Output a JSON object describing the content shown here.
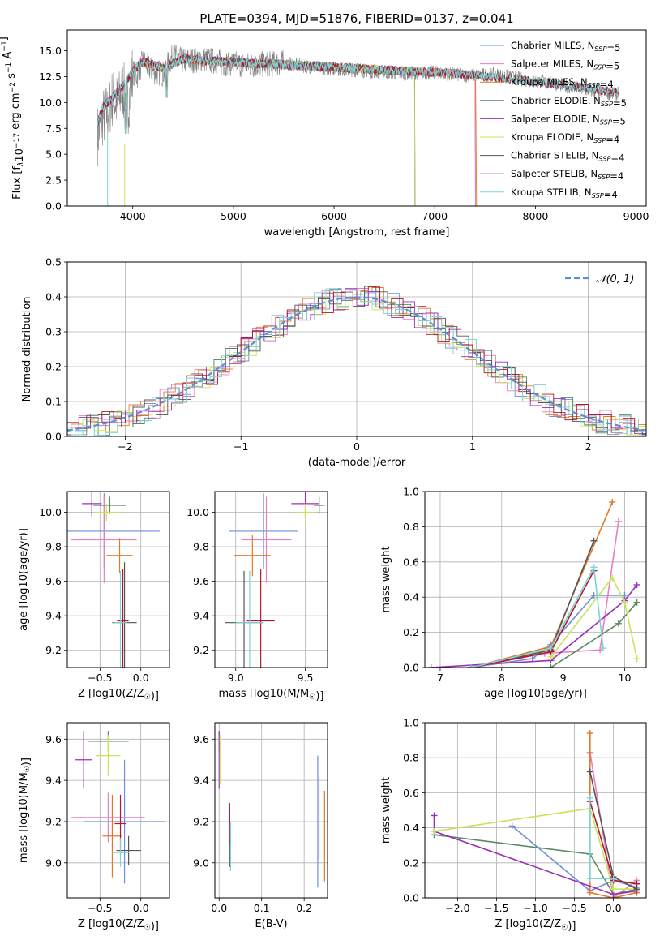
{
  "colors": {
    "chabrier_miles": "#6d8fdc",
    "salpeter_miles": "#e87fc0",
    "kroupa_miles": "#e07a28",
    "chabrier_elodie": "#5a8a64",
    "salpeter_elodie": "#9a2fb8",
    "kroupa_elodie": "#c8e35a",
    "chabrier_stelib": "#555555",
    "salpeter_stelib": "#b11a2a",
    "kroupa_stelib": "#7ed3d8",
    "normal": "#5b8fd8",
    "spectrum_data": "#808080"
  },
  "chart_data": [
    {
      "id": "spectrum",
      "type": "line",
      "title": "PLATE=0394, MJD=51876, FIBERID=0137, z=0.041",
      "xlabel": "wavelength [Angstrom, rest frame]",
      "ylabel": "Flux [f_λ10^-17 erg cm^-2 s^-1 A^-1]",
      "xlim": [
        3350,
        9100
      ],
      "ylim": [
        0,
        17
      ],
      "xticks": [
        4000,
        5000,
        6000,
        7000,
        8000,
        9000
      ],
      "yticks": [
        0.0,
        2.5,
        5.0,
        7.5,
        10.0,
        12.5,
        15.0
      ],
      "legend_position": "top-right",
      "legend": [
        {
          "label": "Chabrier MILES, N_SSP=5",
          "color": "chabrier_miles"
        },
        {
          "label": "Salpeter MILES, N_SSP=5",
          "color": "salpeter_miles"
        },
        {
          "label": "Kroupa MILES, N_SSP=4",
          "color": "kroupa_miles"
        },
        {
          "label": "Chabrier ELODIE, N_SSP=5",
          "color": "chabrier_elodie"
        },
        {
          "label": "Salpeter ELODIE, N_SSP=5",
          "color": "salpeter_elodie"
        },
        {
          "label": "Kroupa ELODIE, N_SSP=4",
          "color": "kroupa_elodie"
        },
        {
          "label": "Chabrier STELIB, N_SSP=4",
          "color": "chabrier_stelib"
        },
        {
          "label": "Salpeter STELIB, N_SSP=4",
          "color": "salpeter_stelib"
        },
        {
          "label": "Kroupa STELIB, N_SSP=4",
          "color": "kroupa_stelib"
        }
      ],
      "data_curve": {
        "color": "spectrum_data",
        "x": [
          3650,
          3700,
          3750,
          3800,
          3850,
          3900,
          3950,
          4000,
          4050,
          4100,
          4200,
          4300,
          4400,
          4500,
          4700,
          4900,
          5200,
          5500,
          5800,
          6100,
          6400,
          6700,
          7000,
          7300,
          7600,
          7900,
          8200,
          8500,
          8800
        ],
        "y": [
          6.8,
          8.5,
          9.0,
          10.5,
          9.8,
          11.5,
          9.5,
          13.0,
          12.5,
          14.0,
          13.0,
          12.8,
          14.5,
          14.0,
          14.2,
          13.8,
          13.6,
          13.8,
          13.4,
          13.2,
          13.0,
          12.8,
          12.9,
          12.6,
          12.7,
          12.2,
          11.8,
          11.2,
          10.8
        ]
      },
      "model_curve": {
        "x": [
          3650,
          3700,
          3800,
          3900,
          4000,
          4100,
          4300,
          4500,
          4800,
          5200,
          5600,
          6000,
          6400,
          6800,
          7200,
          7600,
          8000,
          8400,
          8800
        ],
        "y": [
          8.0,
          9.5,
          10.5,
          11.5,
          13.0,
          14.0,
          13.3,
          14.2,
          14.0,
          13.8,
          13.6,
          13.4,
          13.2,
          13.0,
          12.8,
          12.4,
          12.0,
          11.5,
          11.0
        ]
      }
    },
    {
      "id": "residuals",
      "type": "histogram",
      "xlabel": "(data-model)/error",
      "ylabel": "Normed distribution",
      "xlim": [
        -2.5,
        2.5
      ],
      "ylim": [
        0,
        0.5
      ],
      "xticks": [
        -2,
        -1,
        0,
        1,
        2
      ],
      "yticks": [
        0.0,
        0.1,
        0.2,
        0.3,
        0.4,
        0.5
      ],
      "grid": true,
      "legend_position": "top-right",
      "legend": [
        {
          "label": "𝒩(0, 1)",
          "color": "normal",
          "style": "dashed"
        }
      ]
    },
    {
      "id": "age_vs_Z",
      "type": "scatter",
      "xlabel": "Z [log10(Z/Z☉)]",
      "ylabel": "age  [log10(age/yr)]",
      "xlim": [
        -0.9,
        0.35
      ],
      "ylim": [
        9.1,
        10.12
      ],
      "xticks": [
        -0.5,
        0.0
      ],
      "yticks": [
        9.2,
        9.4,
        9.6,
        9.8,
        10.0
      ],
      "grid": true,
      "points": [
        {
          "model": "chabrier_miles",
          "x": -0.45,
          "y": 9.89,
          "xerr": 0.68,
          "yerr": 0.22
        },
        {
          "model": "salpeter_miles",
          "x": -0.45,
          "y": 9.84,
          "xerr": 0.4,
          "yerr": 0.25
        },
        {
          "model": "kroupa_miles",
          "x": -0.26,
          "y": 9.75,
          "xerr": 0.16,
          "yerr": 0.1
        },
        {
          "model": "chabrier_elodie",
          "x": -0.38,
          "y": 10.04,
          "xerr": 0.2,
          "yerr": 0.05
        },
        {
          "model": "salpeter_elodie",
          "x": -0.6,
          "y": 10.05,
          "xerr": 0.12,
          "yerr": 0.08
        },
        {
          "model": "kroupa_elodie",
          "x": -0.42,
          "y": 10.0,
          "xerr": 0.16,
          "yerr": 0.05
        },
        {
          "model": "chabrier_stelib",
          "x": -0.2,
          "y": 9.36,
          "xerr": 0.15,
          "yerr": 0.35
        },
        {
          "model": "salpeter_stelib",
          "x": -0.22,
          "y": 9.37,
          "xerr": 0.07,
          "yerr": 0.3
        },
        {
          "model": "kroupa_stelib",
          "x": -0.25,
          "y": 9.36,
          "xerr": 0.08,
          "yerr": 0.3
        }
      ]
    },
    {
      "id": "age_vs_mass",
      "type": "scatter",
      "xlabel": "mass [log10(M/M☉)]",
      "ylabel": "",
      "xlim": [
        8.85,
        9.66
      ],
      "ylim": [
        9.1,
        10.12
      ],
      "xticks": [
        9.0,
        9.5
      ],
      "yticks": [
        9.2,
        9.4,
        9.6,
        9.8,
        10.0
      ],
      "grid": true,
      "points": [
        {
          "model": "chabrier_miles",
          "x": 9.2,
          "y": 9.89,
          "xerr": 0.25,
          "yerr": 0.22
        },
        {
          "model": "salpeter_miles",
          "x": 9.22,
          "y": 9.84,
          "xerr": 0.18,
          "yerr": 0.25
        },
        {
          "model": "kroupa_miles",
          "x": 9.12,
          "y": 9.75,
          "xerr": 0.13,
          "yerr": 0.12
        },
        {
          "model": "chabrier_elodie",
          "x": 9.6,
          "y": 10.04,
          "xerr": 0.04,
          "yerr": 0.05
        },
        {
          "model": "salpeter_elodie",
          "x": 9.5,
          "y": 10.05,
          "xerr": 0.1,
          "yerr": 0.08
        },
        {
          "model": "kroupa_elodie",
          "x": 9.5,
          "y": 10.0,
          "xerr": 0.06,
          "yerr": 0.05
        },
        {
          "model": "chabrier_stelib",
          "x": 9.06,
          "y": 9.36,
          "xerr": 0.14,
          "yerr": 0.3
        },
        {
          "model": "salpeter_stelib",
          "x": 9.18,
          "y": 9.37,
          "xerr": 0.1,
          "yerr": 0.3
        },
        {
          "model": "kroupa_stelib",
          "x": 9.1,
          "y": 9.36,
          "xerr": 0.1,
          "yerr": 0.3
        }
      ]
    },
    {
      "id": "mass_weight_vs_age",
      "type": "line",
      "xlabel": "age  [log10(age/yr)]",
      "ylabel": "mass weight",
      "xlim": [
        6.75,
        10.35
      ],
      "ylim": [
        0,
        1.0
      ],
      "xticks": [
        7,
        8,
        9,
        10
      ],
      "yticks": [
        0.0,
        0.2,
        0.4,
        0.6,
        0.8,
        1.0
      ],
      "grid": true,
      "series": [
        {
          "model": "chabrier_miles",
          "x": [
            7.5,
            8.5,
            8.8,
            9.5,
            10.0
          ],
          "y": [
            0.0,
            0.05,
            0.13,
            0.41,
            0.41
          ]
        },
        {
          "model": "salpeter_miles",
          "x": [
            7.5,
            8.7,
            9.6,
            9.9
          ],
          "y": [
            0.0,
            0.08,
            0.1,
            0.83
          ]
        },
        {
          "model": "kroupa_miles",
          "x": [
            7.5,
            8.8,
            9.8
          ],
          "y": [
            0.0,
            0.12,
            0.94
          ]
        },
        {
          "model": "chabrier_elodie",
          "x": [
            7.5,
            8.8,
            9.9,
            10.2
          ],
          "y": [
            0.0,
            0.0,
            0.25,
            0.37
          ]
        },
        {
          "model": "salpeter_elodie",
          "x": [
            6.85,
            8.8,
            10.0,
            10.2
          ],
          "y": [
            0.0,
            0.04,
            0.38,
            0.47
          ]
        },
        {
          "model": "kroupa_elodie",
          "x": [
            8.8,
            9.8,
            10.0,
            10.2
          ],
          "y": [
            0.06,
            0.51,
            0.37,
            0.05
          ]
        },
        {
          "model": "chabrier_stelib",
          "x": [
            7.5,
            8.8,
            9.5
          ],
          "y": [
            0.0,
            0.1,
            0.72
          ]
        },
        {
          "model": "salpeter_stelib",
          "x": [
            7.5,
            8.8,
            9.5
          ],
          "y": [
            0.0,
            0.09,
            0.55
          ]
        },
        {
          "model": "kroupa_stelib",
          "x": [
            7.5,
            8.8,
            9.5,
            9.65
          ],
          "y": [
            0.0,
            0.11,
            0.57,
            0.11
          ]
        }
      ]
    },
    {
      "id": "mass_vs_Z",
      "type": "scatter",
      "xlabel": "Z [log10(Z/Z☉)]",
      "ylabel": "mass [log10(M/M☉)]",
      "xlim": [
        -0.9,
        0.35
      ],
      "ylim": [
        8.83,
        9.68
      ],
      "xticks": [
        -0.5,
        0.0
      ],
      "yticks": [
        9.0,
        9.2,
        9.4,
        9.6
      ],
      "grid": true,
      "points": [
        {
          "model": "chabrier_miles",
          "x": -0.2,
          "y": 9.2,
          "xerr": 0.5,
          "yerr": 0.3
        },
        {
          "model": "salpeter_miles",
          "x": -0.4,
          "y": 9.22,
          "xerr": 0.45,
          "yerr": 0.12
        },
        {
          "model": "kroupa_miles",
          "x": -0.35,
          "y": 9.13,
          "xerr": 0.12,
          "yerr": 0.2
        },
        {
          "model": "chabrier_elodie",
          "x": -0.4,
          "y": 9.59,
          "xerr": 0.25,
          "yerr": 0.05
        },
        {
          "model": "salpeter_elodie",
          "x": -0.7,
          "y": 9.5,
          "xerr": 0.1,
          "yerr": 0.14
        },
        {
          "model": "kroupa_elodie",
          "x": -0.4,
          "y": 9.52,
          "xerr": 0.15,
          "yerr": 0.1
        },
        {
          "model": "chabrier_stelib",
          "x": -0.15,
          "y": 9.06,
          "xerr": 0.15,
          "yerr": 0.07
        },
        {
          "model": "salpeter_stelib",
          "x": -0.25,
          "y": 9.19,
          "xerr": 0.07,
          "yerr": 0.14
        },
        {
          "model": "kroupa_stelib",
          "x": -0.25,
          "y": 9.05,
          "xerr": 0.1,
          "yerr": 0.07
        }
      ]
    },
    {
      "id": "mass_vs_ebv",
      "type": "scatter",
      "xlabel": "E(B-V)",
      "ylabel": "",
      "xlim": [
        -0.01,
        0.255
      ],
      "ylim": [
        8.83,
        9.68
      ],
      "xticks": [
        0.0,
        0.1,
        0.2
      ],
      "yticks": [
        9.0,
        9.2,
        9.4,
        9.6
      ],
      "grid": true,
      "points": [
        {
          "model": "chabrier_miles",
          "x": 0.232,
          "y": 9.2,
          "xerr": 0.0,
          "yerr": 0.32
        },
        {
          "model": "salpeter_miles",
          "x": 0.235,
          "y": 9.22,
          "xerr": 0.0,
          "yerr": 0.2
        },
        {
          "model": "kroupa_miles",
          "x": 0.248,
          "y": 9.13,
          "xerr": 0.0,
          "yerr": 0.22
        },
        {
          "model": "chabrier_elodie",
          "x": 0.0,
          "y": 9.59,
          "xerr": 0.0,
          "yerr": 0.05
        },
        {
          "model": "salpeter_elodie",
          "x": 0.0,
          "y": 9.5,
          "xerr": 0.0,
          "yerr": 0.14
        },
        {
          "model": "kroupa_elodie",
          "x": 0.002,
          "y": 9.5,
          "xerr": 0.0,
          "yerr": 0.12
        },
        {
          "model": "chabrier_stelib",
          "x": 0.025,
          "y": 9.06,
          "xerr": 0.0,
          "yerr": 0.08
        },
        {
          "model": "salpeter_stelib",
          "x": 0.025,
          "y": 9.19,
          "xerr": 0.0,
          "yerr": 0.1
        },
        {
          "model": "kroupa_stelib",
          "x": 0.027,
          "y": 9.08,
          "xerr": 0.0,
          "yerr": 0.12
        }
      ]
    },
    {
      "id": "mass_weight_vs_Z",
      "type": "line",
      "xlabel": "Z [log10(Z/Z☉)]",
      "ylabel": "mass weight",
      "xlim": [
        -2.42,
        0.42
      ],
      "ylim": [
        0,
        1.0
      ],
      "xticks": [
        -2.0,
        -1.5,
        -1.0,
        -0.5,
        0.0
      ],
      "yticks": [
        0.0,
        0.2,
        0.4,
        0.6,
        0.8,
        1.0
      ],
      "grid": true,
      "series": [
        {
          "model": "chabrier_miles",
          "x": [
            -1.3,
            -0.3,
            0.0,
            0.3
          ],
          "y": [
            0.41,
            0.04,
            0.1,
            0.06
          ]
        },
        {
          "model": "salpeter_miles",
          "x": [
            -0.3,
            0.0,
            0.3
          ],
          "y": [
            0.83,
            0.0,
            0.1
          ]
        },
        {
          "model": "kroupa_miles",
          "x": [
            -0.3,
            -0.3,
            0.0,
            0.3
          ],
          "y": [
            0.94,
            0.03,
            0.0,
            0.03
          ]
        },
        {
          "model": "chabrier_elodie",
          "x": [
            -2.3,
            -0.3,
            0.0,
            0.3
          ],
          "y": [
            0.36,
            0.25,
            0.02,
            0.05
          ]
        },
        {
          "model": "salpeter_elodie",
          "x": [
            -2.3,
            -2.3,
            0.0,
            0.3
          ],
          "y": [
            0.47,
            0.38,
            0.02,
            0.04
          ]
        },
        {
          "model": "kroupa_elodie",
          "x": [
            -2.3,
            -0.3,
            0.0,
            0.3
          ],
          "y": [
            0.38,
            0.51,
            0.05,
            0.05
          ]
        },
        {
          "model": "chabrier_stelib",
          "x": [
            -0.3,
            0.0,
            0.3
          ],
          "y": [
            0.72,
            0.12,
            0.05
          ]
        },
        {
          "model": "salpeter_stelib",
          "x": [
            -0.3,
            0.0,
            0.3
          ],
          "y": [
            0.55,
            0.1,
            0.08
          ]
        },
        {
          "model": "kroupa_stelib",
          "x": [
            -0.3,
            -0.3,
            0.0
          ],
          "y": [
            0.57,
            0.11,
            0.11
          ]
        }
      ]
    }
  ]
}
